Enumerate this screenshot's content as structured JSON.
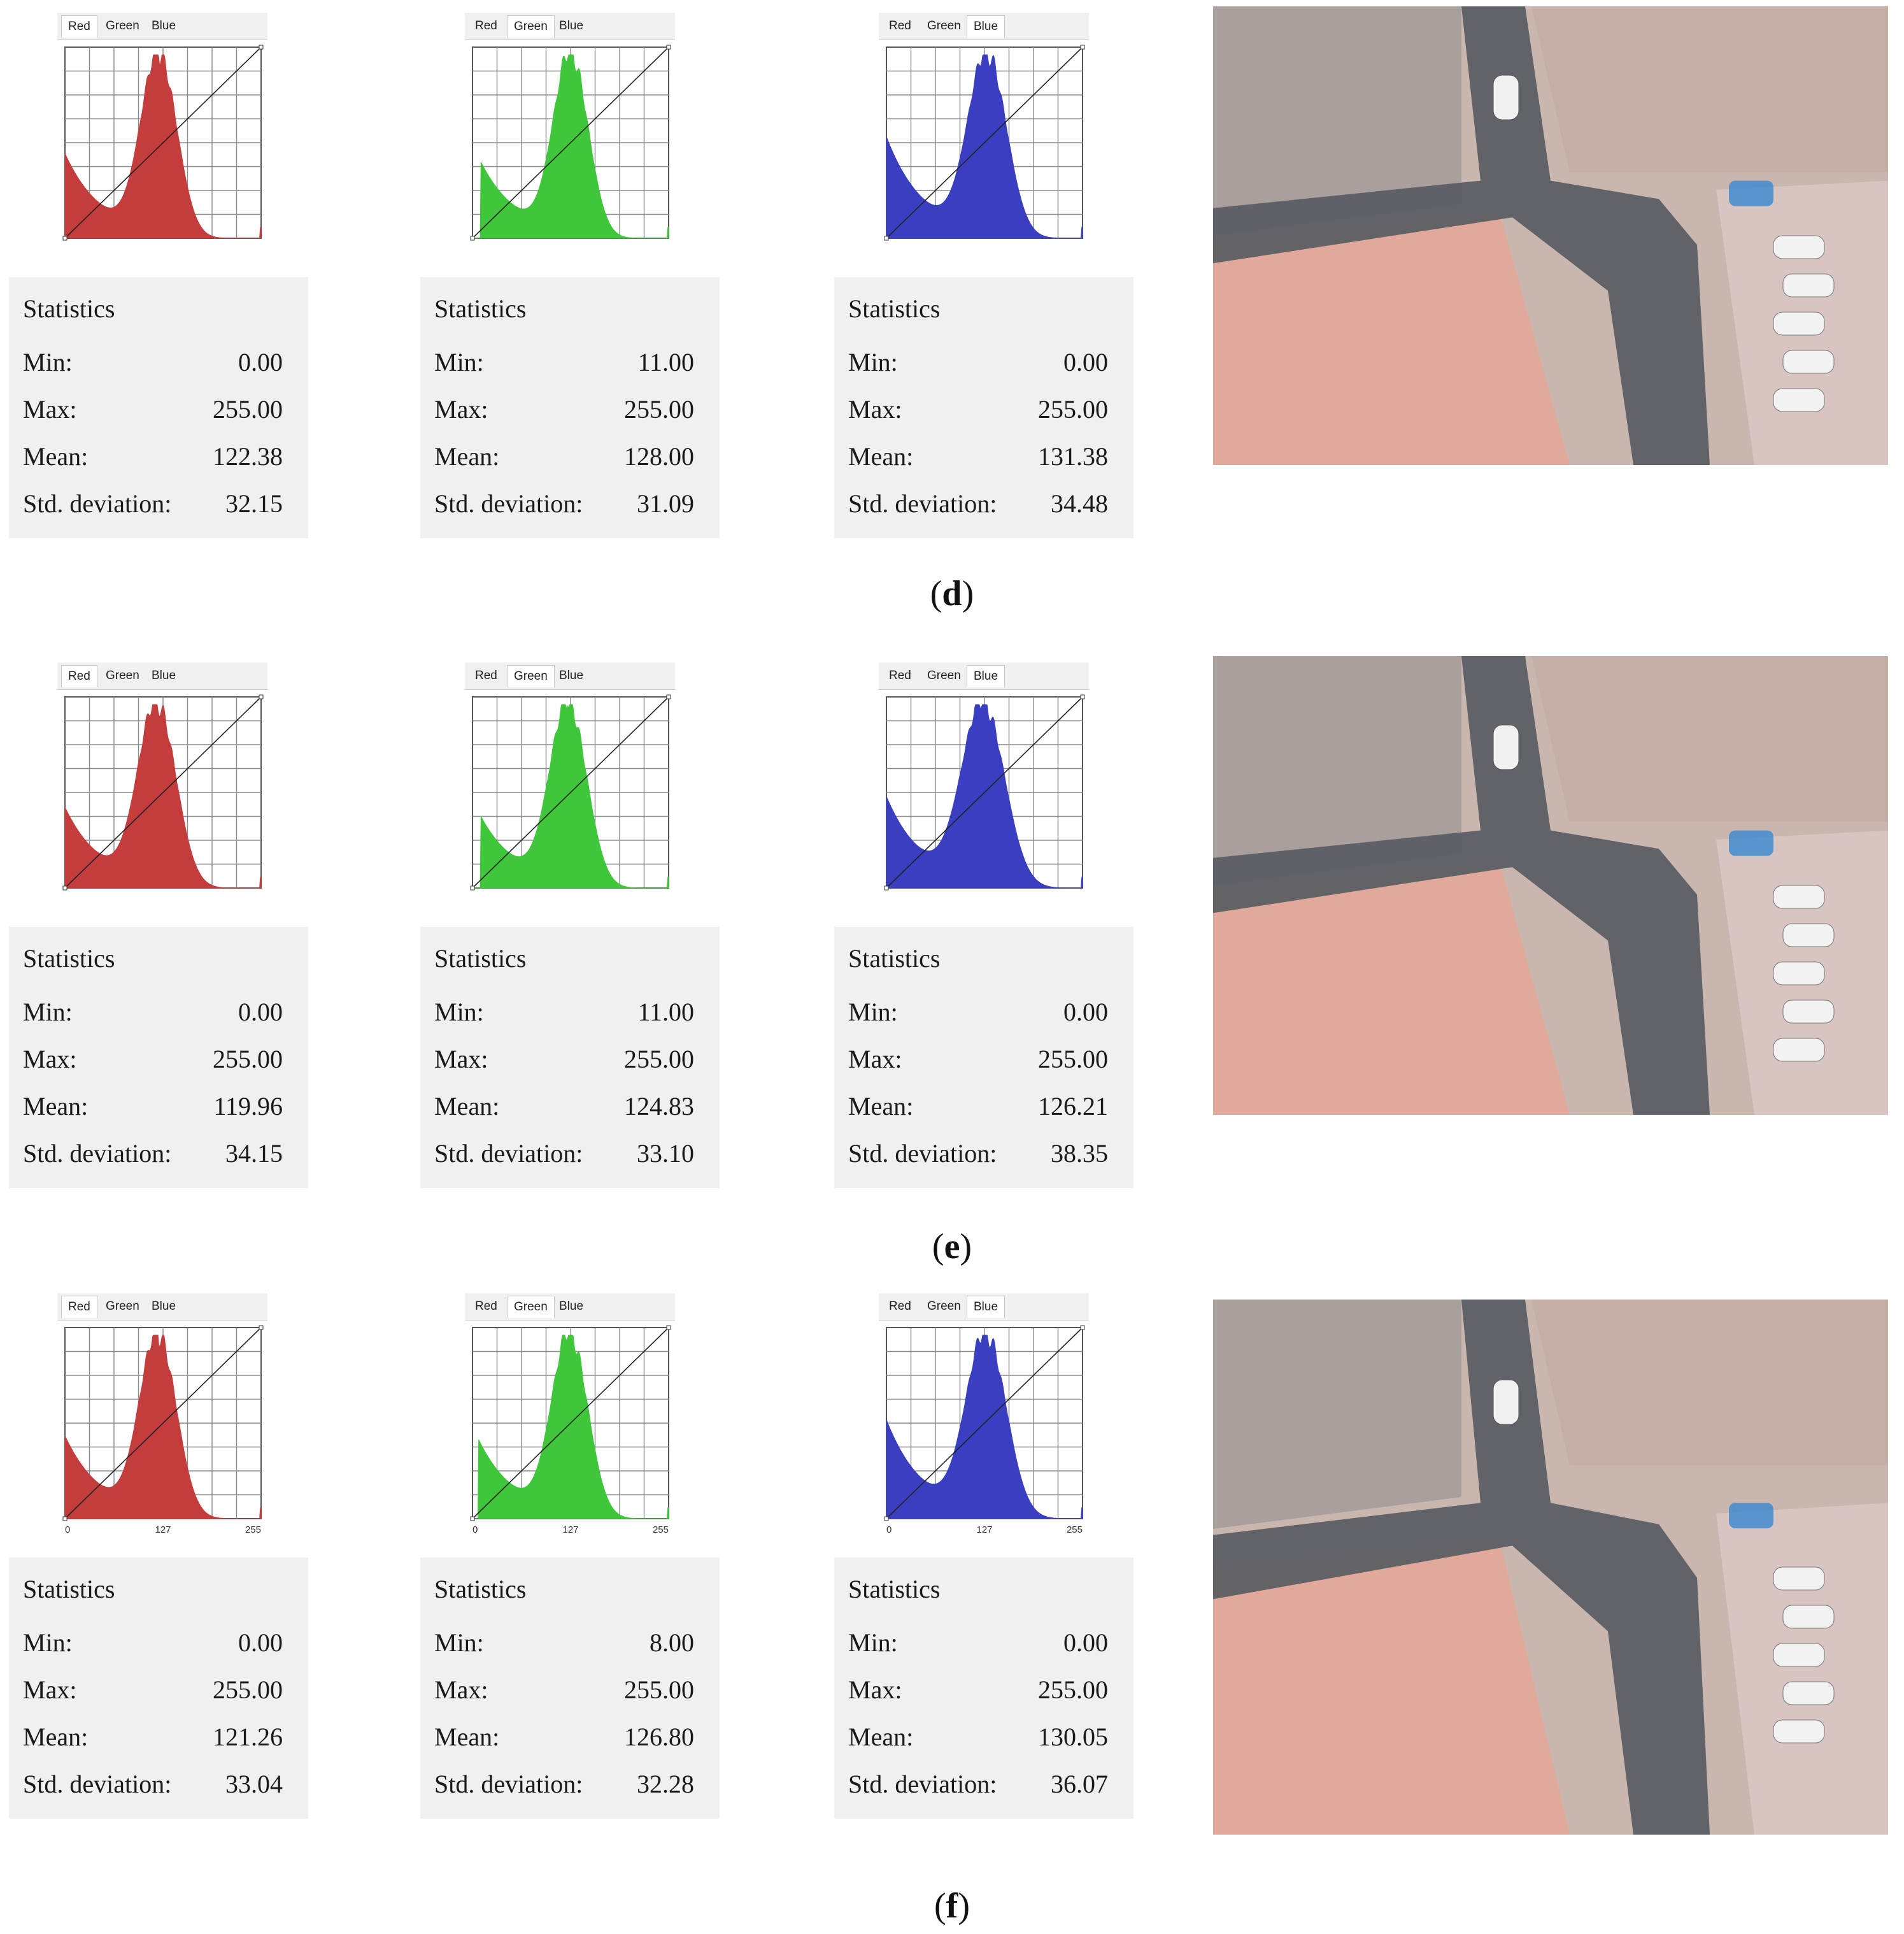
{
  "tabs": [
    "Red",
    "Green",
    "Blue"
  ],
  "stats_title": "Statistics",
  "stat_labels": {
    "min": "Min:",
    "max": "Max:",
    "mean": "Mean:",
    "std": "Std. deviation:"
  },
  "colors": {
    "red": "#c43c3c",
    "green": "#3fc63a",
    "blue": "#3a3ec0"
  },
  "rows": [
    {
      "caption": "d",
      "panels": [
        {
          "channel": "Red",
          "min": "0.00",
          "max": "255.00",
          "mean": "122.38",
          "std": "32.15"
        },
        {
          "channel": "Green",
          "min": "11.00",
          "max": "255.00",
          "mean": "128.00",
          "std": "31.09"
        },
        {
          "channel": "Blue",
          "min": "0.00",
          "max": "255.00",
          "mean": "131.38",
          "std": "34.48"
        }
      ]
    },
    {
      "caption": "e",
      "panels": [
        {
          "channel": "Red",
          "min": "0.00",
          "max": "255.00",
          "mean": "119.96",
          "std": "34.15"
        },
        {
          "channel": "Green",
          "min": "11.00",
          "max": "255.00",
          "mean": "124.83",
          "std": "33.10"
        },
        {
          "channel": "Blue",
          "min": "0.00",
          "max": "255.00",
          "mean": "126.21",
          "std": "38.35"
        }
      ]
    },
    {
      "caption": "f",
      "axis_ticks": [
        "0",
        "127",
        "255"
      ],
      "panels": [
        {
          "channel": "Red",
          "min": "0.00",
          "max": "255.00",
          "mean": "121.26",
          "std": "33.04"
        },
        {
          "channel": "Green",
          "min": "8.00",
          "max": "255.00",
          "mean": "126.80",
          "std": "32.28"
        },
        {
          "channel": "Blue",
          "min": "0.00",
          "max": "255.00",
          "mean": "130.05",
          "std": "36.07"
        }
      ]
    }
  ],
  "chart_data": {
    "type": "area",
    "x_range": [
      0,
      255
    ],
    "grid": true,
    "series": [
      {
        "row": "d",
        "channel": "Red",
        "mean": 122.38,
        "std": 32.15,
        "min": 0,
        "max": 255
      },
      {
        "row": "d",
        "channel": "Green",
        "mean": 128.0,
        "std": 31.09,
        "min": 11,
        "max": 255
      },
      {
        "row": "d",
        "channel": "Blue",
        "mean": 131.38,
        "std": 34.48,
        "min": 0,
        "max": 255
      },
      {
        "row": "e",
        "channel": "Red",
        "mean": 119.96,
        "std": 34.15,
        "min": 0,
        "max": 255
      },
      {
        "row": "e",
        "channel": "Green",
        "mean": 124.83,
        "std": 33.1,
        "min": 11,
        "max": 255
      },
      {
        "row": "e",
        "channel": "Blue",
        "mean": 126.21,
        "std": 38.35,
        "min": 0,
        "max": 255
      },
      {
        "row": "f",
        "channel": "Red",
        "mean": 121.26,
        "std": 33.04,
        "min": 0,
        "max": 255
      },
      {
        "row": "f",
        "channel": "Green",
        "mean": 126.8,
        "std": 32.28,
        "min": 8,
        "max": 255
      },
      {
        "row": "f",
        "channel": "Blue",
        "mean": 130.05,
        "std": 36.07,
        "min": 0,
        "max": 255
      }
    ]
  }
}
